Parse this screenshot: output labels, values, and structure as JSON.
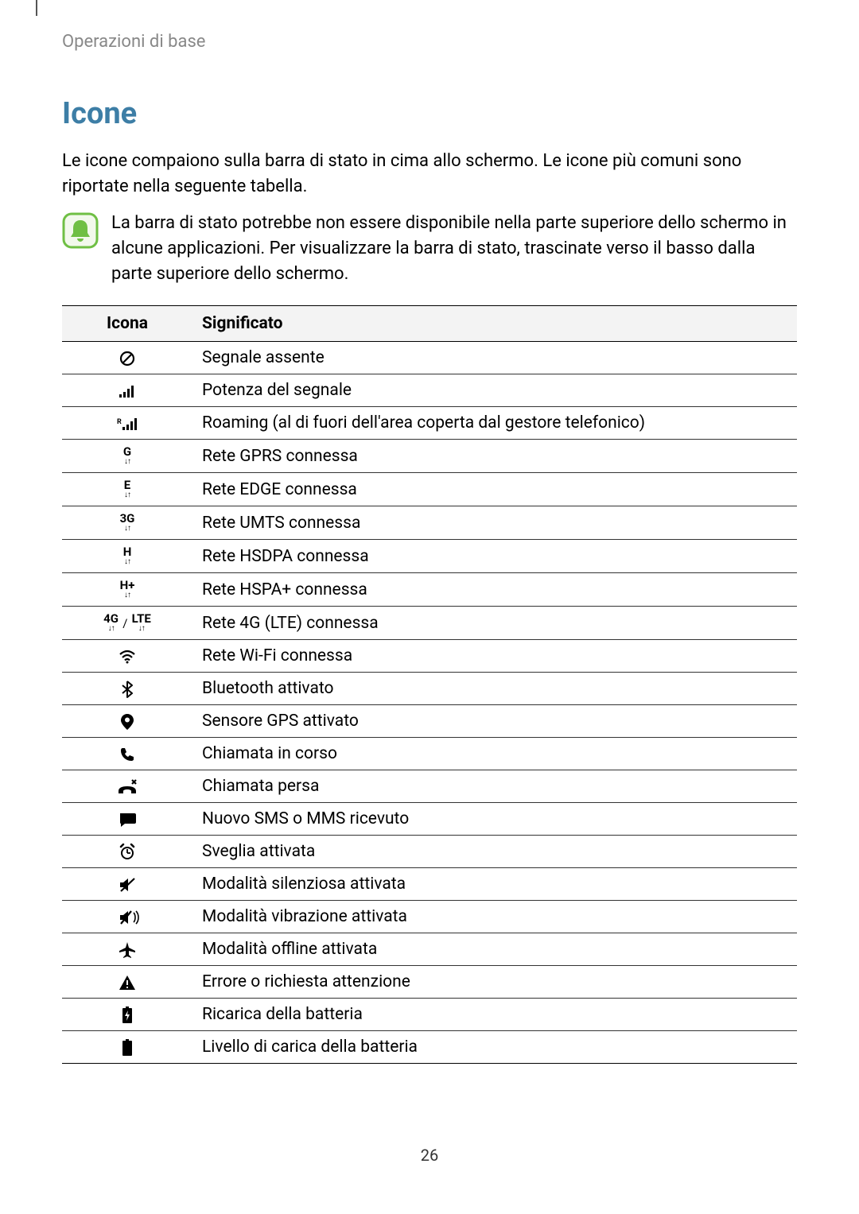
{
  "breadcrumb": "Operazioni di base",
  "title": "Icone",
  "intro": "Le icone compaiono sulla barra di stato in cima allo schermo. Le icone più comuni sono riportate nella seguente tabella.",
  "note": "La barra di stato potrebbe non essere disponibile nella parte superiore dello schermo in alcune applicazioni. Per visualizzare la barra di stato, trascinate verso il basso dalla parte superiore dello schermo.",
  "table": {
    "columns": [
      "Icona",
      "Significato"
    ],
    "rows": [
      {
        "icon": "no-signal",
        "meaning": "Segnale assente"
      },
      {
        "icon": "signal",
        "meaning": "Potenza del segnale"
      },
      {
        "icon": "roaming",
        "meaning": "Roaming (al di fuori dell'area coperta dal gestore telefonico)"
      },
      {
        "icon": "gprs",
        "text": "G",
        "meaning": "Rete GPRS connessa"
      },
      {
        "icon": "edge",
        "text": "E",
        "meaning": "Rete EDGE connessa"
      },
      {
        "icon": "umts",
        "text": "3G",
        "meaning": "Rete UMTS connessa"
      },
      {
        "icon": "hsdpa",
        "text": "H",
        "meaning": "Rete HSDPA connessa"
      },
      {
        "icon": "hspa",
        "text": "H+",
        "meaning": "Rete HSPA+ connessa"
      },
      {
        "icon": "lte",
        "text1": "4G",
        "text2": "LTE",
        "meaning": "Rete 4G (LTE) connessa"
      },
      {
        "icon": "wifi",
        "meaning": "Rete Wi-Fi connessa"
      },
      {
        "icon": "bluetooth",
        "meaning": "Bluetooth attivato"
      },
      {
        "icon": "gps",
        "meaning": "Sensore GPS attivato"
      },
      {
        "icon": "call",
        "meaning": "Chiamata in corso"
      },
      {
        "icon": "missed-call",
        "meaning": "Chiamata persa"
      },
      {
        "icon": "sms",
        "meaning": "Nuovo SMS o MMS ricevuto"
      },
      {
        "icon": "alarm",
        "meaning": "Sveglia attivata"
      },
      {
        "icon": "silent",
        "meaning": "Modalità silenziosa attivata"
      },
      {
        "icon": "vibrate",
        "meaning": "Modalità vibrazione attivata"
      },
      {
        "icon": "airplane",
        "meaning": "Modalità offline attivata"
      },
      {
        "icon": "warning",
        "meaning": "Errore o richiesta attenzione"
      },
      {
        "icon": "charging",
        "meaning": "Ricarica della batteria"
      },
      {
        "icon": "battery",
        "meaning": "Livello di carica della batteria"
      }
    ]
  },
  "page_number": "26",
  "colors": {
    "title": "#3d7ea6",
    "breadcrumb": "#888888",
    "text": "#000000",
    "note_border": "#6fbf44",
    "note_bg": "#f2f9ec",
    "header_bg": "#f3f3f3",
    "border": "#000000"
  }
}
